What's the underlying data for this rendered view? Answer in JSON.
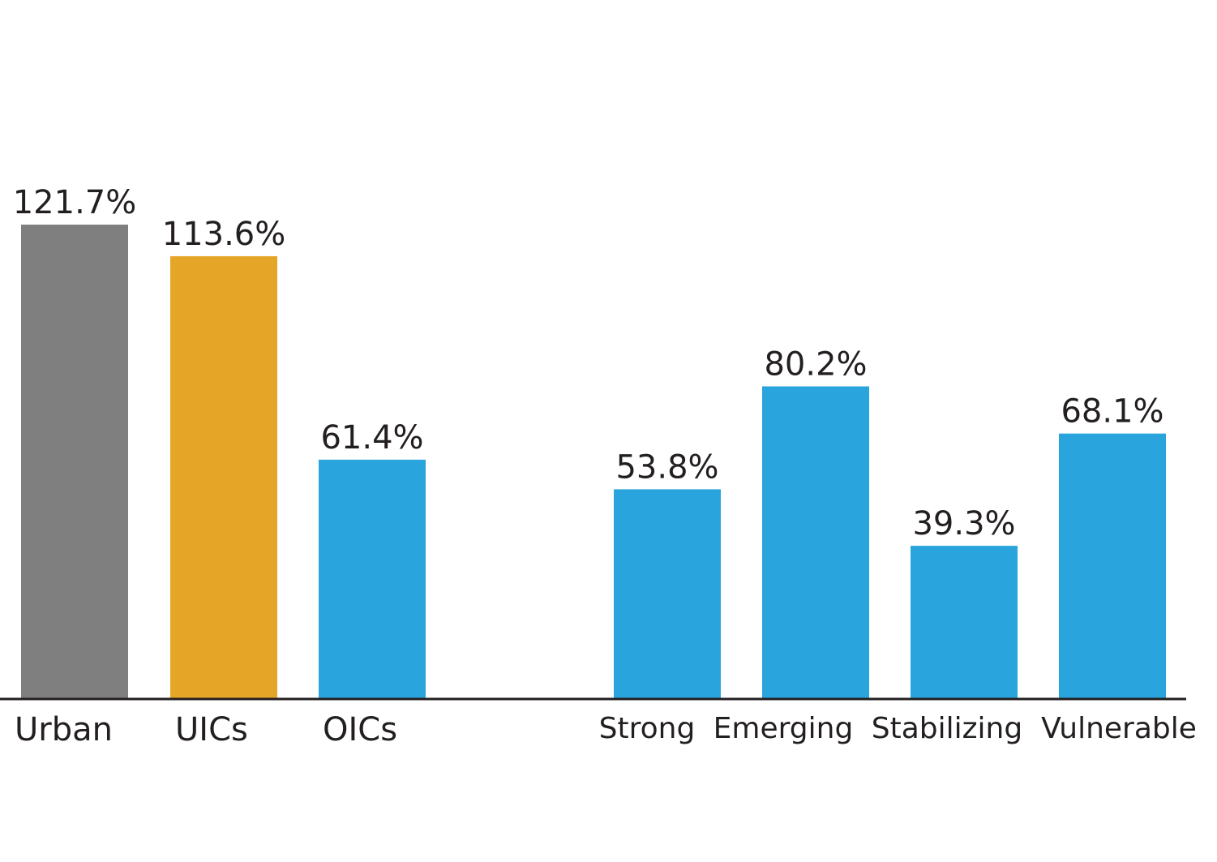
{
  "chart_data": {
    "type": "bar",
    "title": "",
    "xlabel": "",
    "ylabel": "",
    "ylim": [
      0,
      121.7
    ],
    "grid": false,
    "legend": "none",
    "categories": [
      "Urban",
      "UICs",
      "OICs",
      "Strong",
      "Emerging",
      "Stabilizing",
      "Vulnerable"
    ],
    "values": [
      121.7,
      113.6,
      61.4,
      53.8,
      80.2,
      39.3,
      68.1
    ],
    "value_labels": [
      "121.7%",
      "113.6%",
      "61.4%",
      "53.8%",
      "80.2%",
      "39.3%",
      "68.1%"
    ],
    "colors": [
      "#7f7f7f",
      "#e5a527",
      "#29a4dc",
      "#29a4dc",
      "#29a4dc",
      "#29a4dc",
      "#29a4dc"
    ],
    "axis_color": "#231f20"
  }
}
